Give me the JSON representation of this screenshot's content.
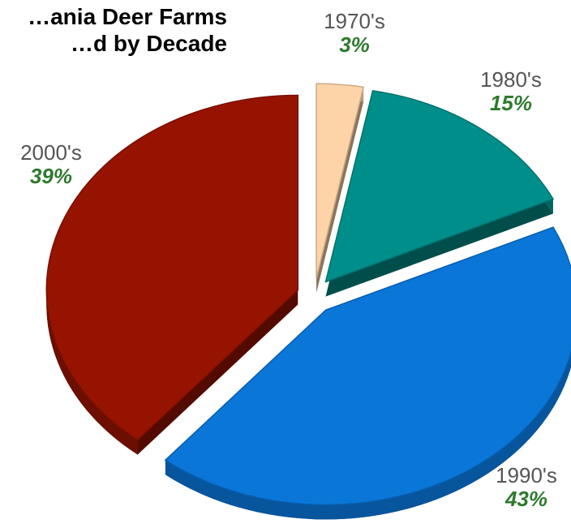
{
  "chart_data": {
    "type": "pie",
    "title": "…ania Deer Farms\n…d by Decade",
    "categories": [
      "1970's",
      "1980's",
      "1990's",
      "2000's"
    ],
    "values": [
      3,
      15,
      43,
      39
    ],
    "labels": [
      "3%",
      "15%",
      "43%",
      "39%"
    ],
    "colors": [
      "#FDD3A8",
      "#008E8B",
      "#0A76D8",
      "#961300"
    ],
    "exploded": true,
    "three_d": true,
    "label_color": "#555555",
    "percent_color": "#2D7A2D"
  }
}
